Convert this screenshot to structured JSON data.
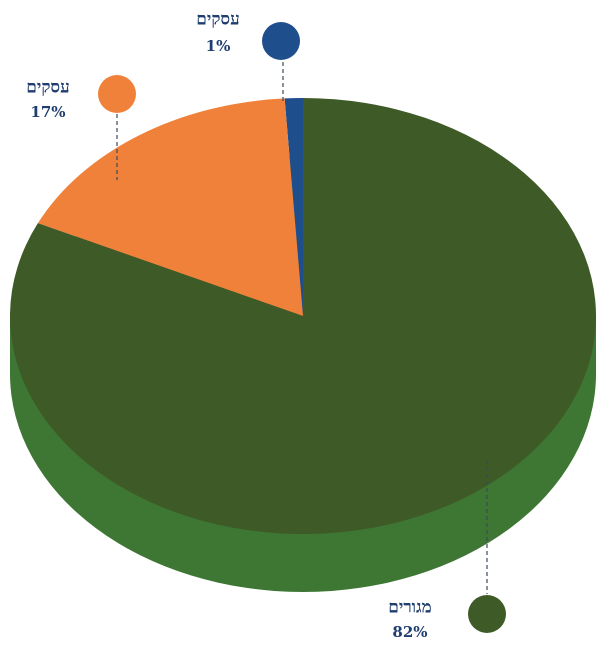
{
  "chart_data": {
    "type": "pie",
    "categories": [
      "עסקים",
      "עסקים",
      "מגורים"
    ],
    "values": [
      1,
      17,
      82
    ],
    "value_labels": [
      "1%",
      "17%",
      "82%"
    ],
    "colors": [
      "#1f4e8c",
      "#f0813a",
      "#3d5a27"
    ]
  }
}
